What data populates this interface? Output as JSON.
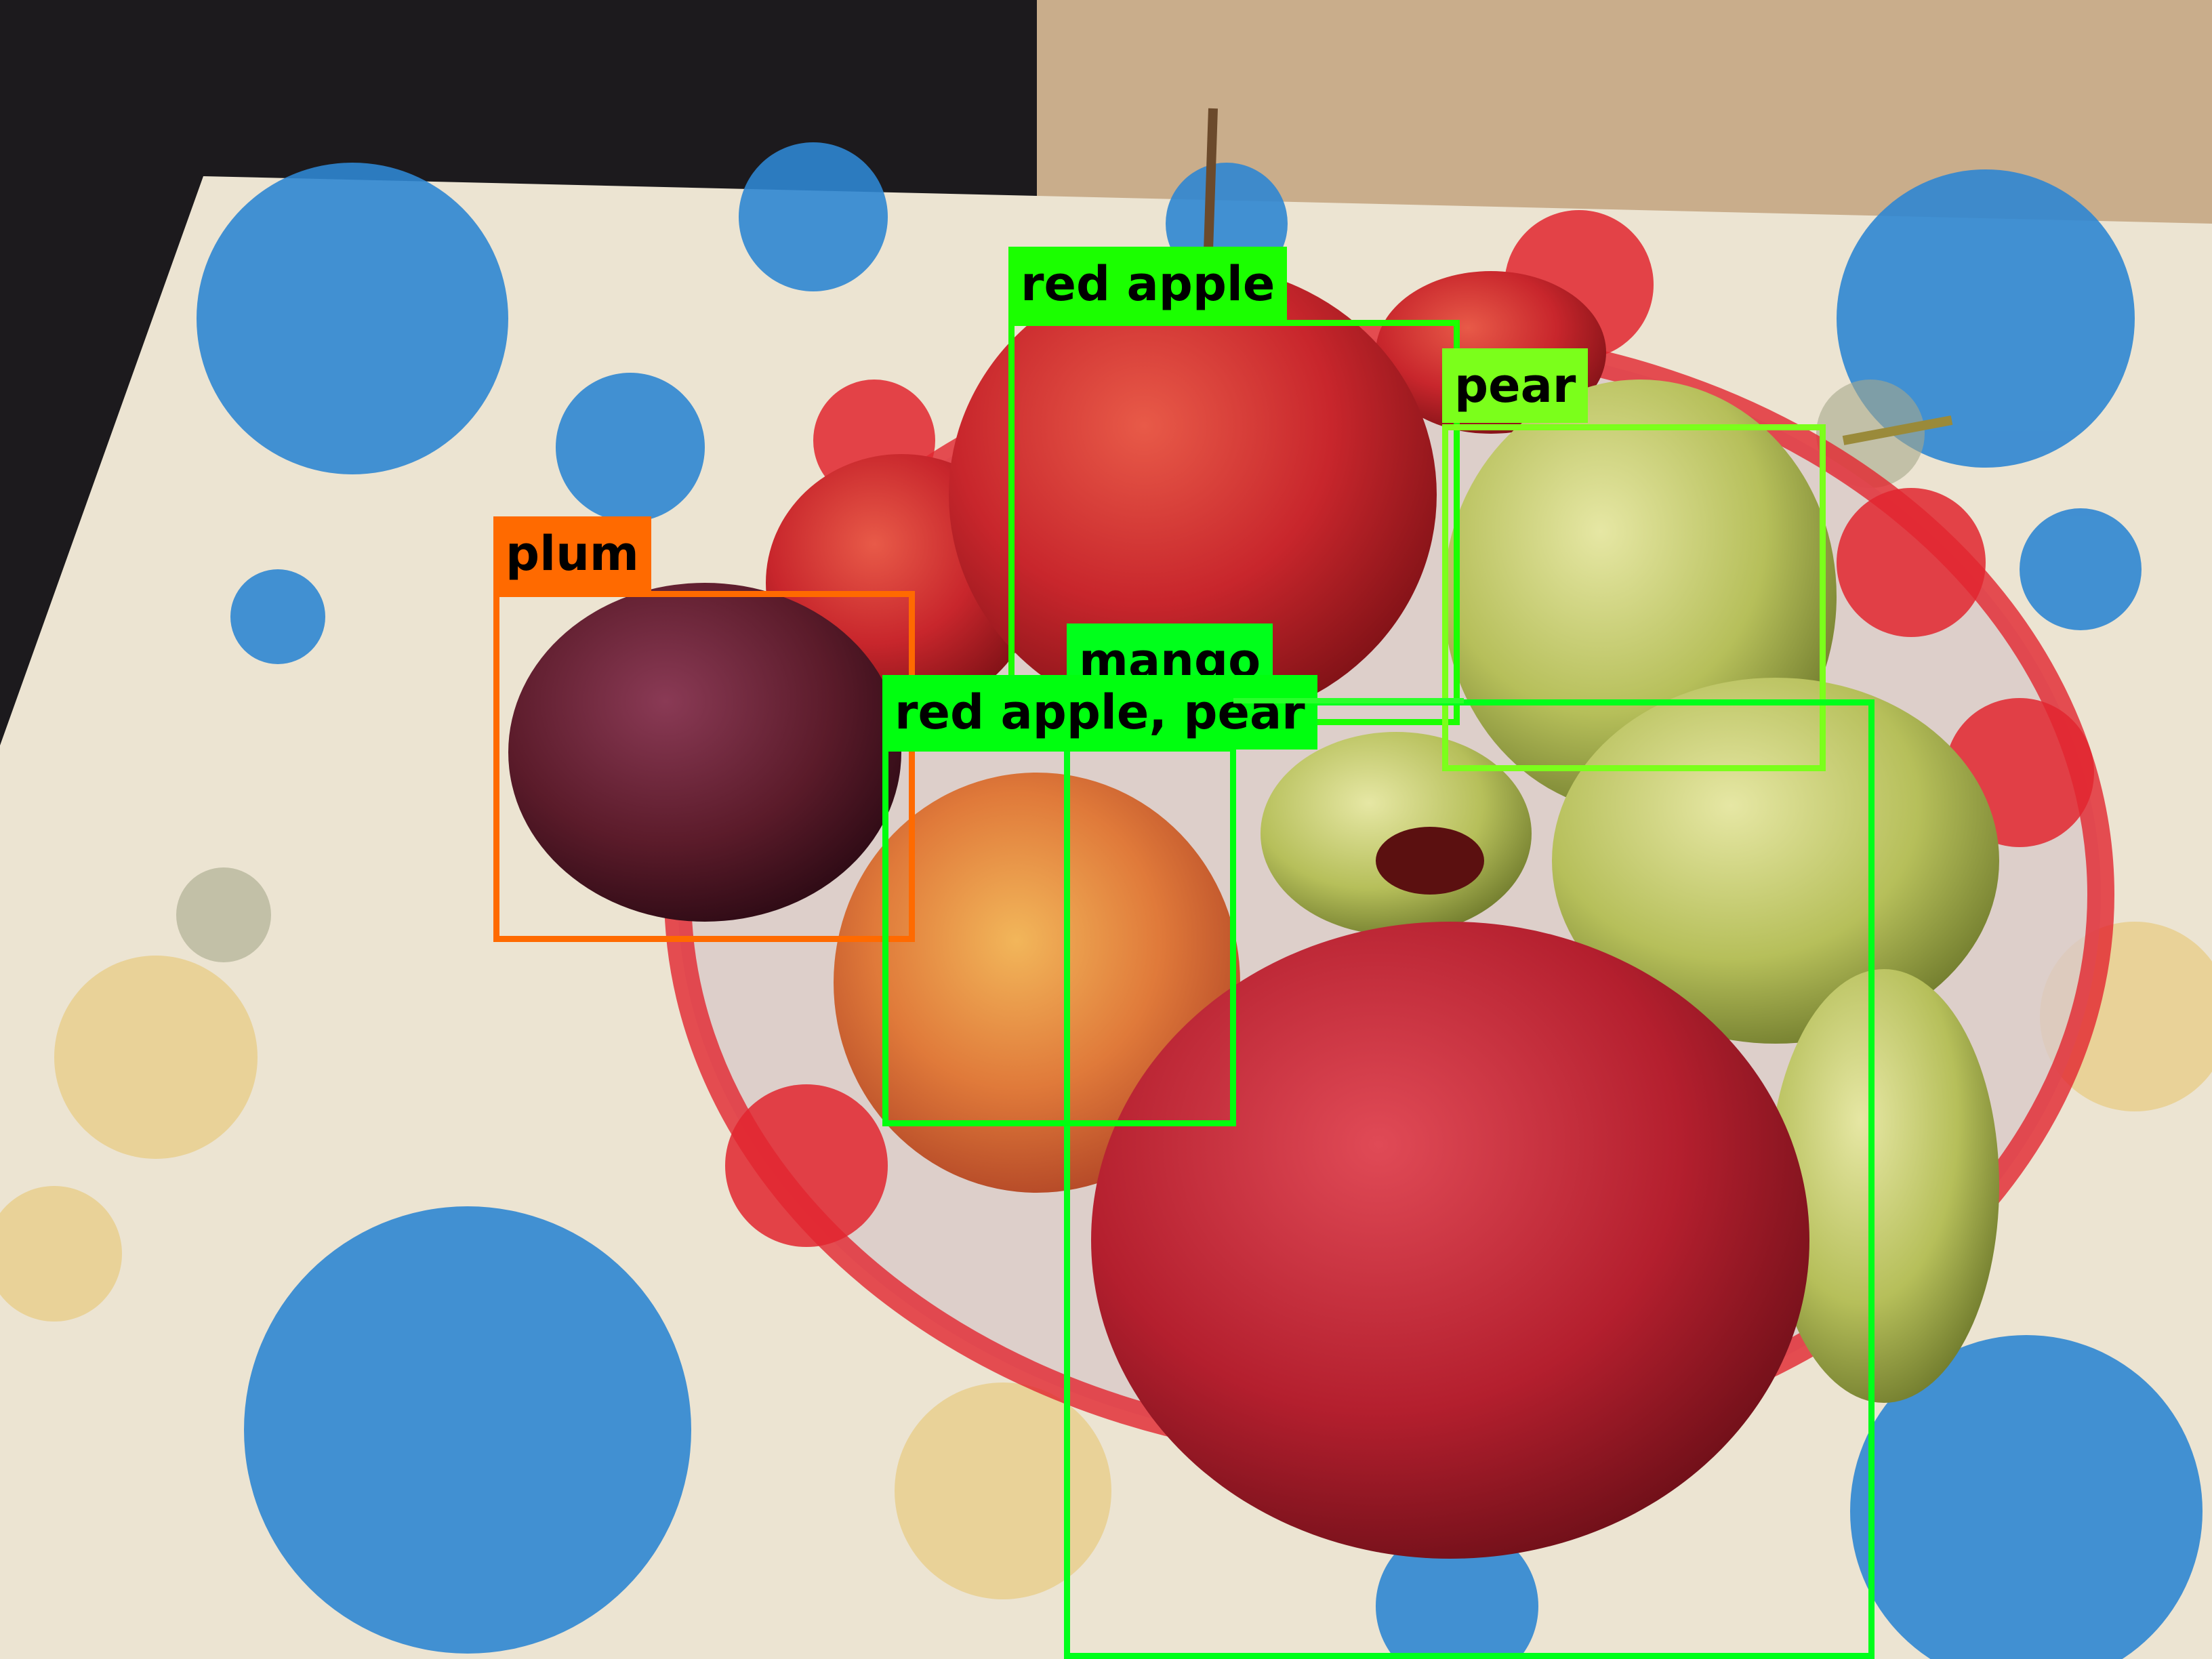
{
  "photo": {
    "description_icon": "fruit-bowl-photo",
    "colors": {
      "tablecloth": "#ece4d2",
      "flower_blue": "#2f86d2",
      "flower_yellow": "#e9cf8e",
      "wall": "#1c1a1d",
      "box": "#c9ad8b",
      "bowl_red": "#e2262f",
      "apple_red": "#c8262c",
      "pear_green": "#b6bf5a",
      "plum": "#5b1b2a",
      "pomegranate": "#b41f2e"
    }
  },
  "detections": [
    {
      "label": "plum",
      "color": "#ff6a00"
    },
    {
      "label": "red apple",
      "color": "#1bff00"
    },
    {
      "label": "pear",
      "color": "#7bff1b"
    },
    {
      "label": "mango",
      "color": "#00ff1b"
    },
    {
      "label": "red apple, pear",
      "color": "#00ff0f"
    },
    {
      "label": "",
      "color": "#2bff2b"
    }
  ]
}
